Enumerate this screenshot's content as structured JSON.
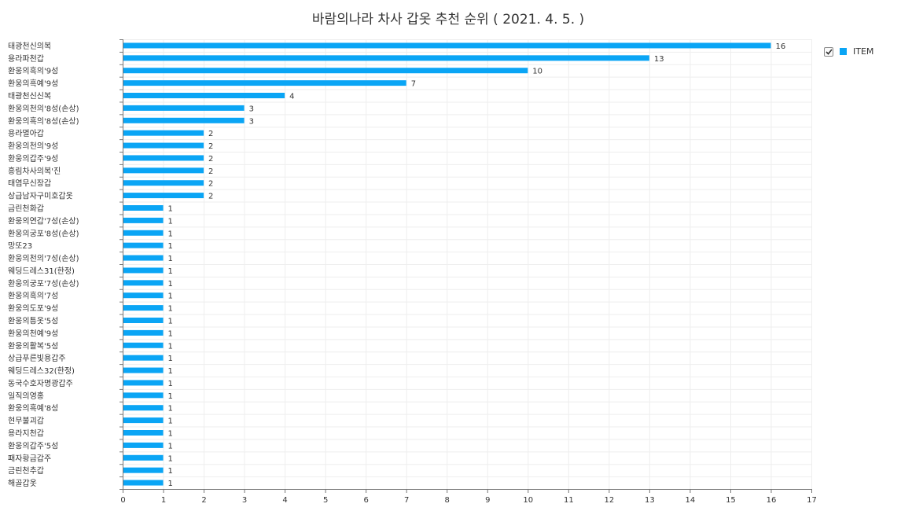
{
  "colors": {
    "bar": "#0aa5f5",
    "grid": "#eeeeee",
    "axis": "#777777",
    "text": "#333333"
  },
  "legend": {
    "checked": true,
    "check_icon": "checkmark-icon"
  },
  "chart_data": {
    "type": "bar",
    "orientation": "horizontal",
    "title": "바람의나라 차사 갑옷 추천 순위 ( 2021. 4. 5. )",
    "xlim": [
      0,
      17
    ],
    "xticks": [
      0,
      1,
      2,
      3,
      4,
      5,
      6,
      7,
      8,
      9,
      10,
      11,
      12,
      13,
      14,
      15,
      16,
      17
    ],
    "grid": true,
    "legend_position": "top-right",
    "series": [
      {
        "name": "ITEM",
        "values": [
          16,
          13,
          10,
          7,
          4,
          3,
          3,
          2,
          2,
          2,
          2,
          2,
          2,
          1,
          1,
          1,
          1,
          1,
          1,
          1,
          1,
          1,
          1,
          1,
          1,
          1,
          1,
          1,
          1,
          1,
          1,
          1,
          1,
          1,
          1,
          1
        ]
      }
    ],
    "categories": [
      "태광천신의복",
      "용라파천갑",
      "환웅의흑의'9성",
      "환웅의흑예'9성",
      "태광천신신복",
      "환웅의천의'8성(손상)",
      "환웅의흑의'8성(손상)",
      "용라멸아갑",
      "환웅의천의'9성",
      "환웅의갑주'9성",
      "흥림차사의복'진",
      "태염무신장갑",
      "상급남자구미호갑옷",
      "금린천화갑",
      "환웅의연갑'7성(손상)",
      "환웅의궁포'8성(손상)",
      "망또23",
      "환웅의천의'7성(손상)",
      "웨딩드레스31(한정)",
      "환웅의궁포'7성(손상)",
      "환웅의흑의'7성",
      "환웅의도포'9성",
      "환웅의틍옷'5성",
      "환웅의천예'9성",
      "환웅의활복'5성",
      "상급푸른빛용갑주",
      "웨딩드레스32(한정)",
      "동국수호자명광갑주",
      "일직의영홍",
      "환웅의흑예'8성",
      "현무불괴갑",
      "용라지천갑",
      "환웅의갑주'5성",
      "패자황금갑주",
      "금린천추갑",
      "해골갑옷"
    ]
  }
}
